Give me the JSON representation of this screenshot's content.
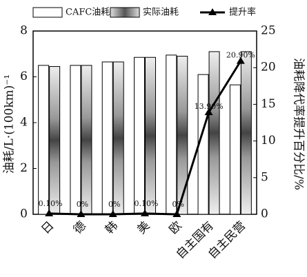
{
  "chart_data": {
    "type": "bar",
    "categories": [
      "日",
      "德",
      "韩",
      "美",
      "欧",
      "自主国有",
      "自主民营"
    ],
    "series": [
      {
        "name": "CAFC油耗",
        "color": "#ffffff",
        "values": [
          6.5,
          6.5,
          6.65,
          6.85,
          6.95,
          6.1,
          5.65
        ]
      },
      {
        "name": "实际油耗",
        "color": "#777777",
        "values": [
          6.45,
          6.5,
          6.65,
          6.85,
          6.9,
          7.1,
          7.1
        ]
      },
      {
        "name": "提升率",
        "color": "#000000",
        "type": "line",
        "axis": "y2",
        "values": [
          0.1,
          0,
          0,
          0.1,
          0,
          13.9,
          20.9
        ],
        "value_labels": [
          "0.10%",
          "0%",
          "0%",
          "0.10%",
          "0%",
          "13.90%",
          "20.90%"
        ]
      }
    ],
    "ylabel": "油耗/L·(100km)⁻¹",
    "y2label": "油耗降代率提升百分比/%",
    "ylim": [
      0,
      8
    ],
    "yticks": [
      0,
      2,
      4,
      6,
      8
    ],
    "y2lim": [
      0,
      25
    ],
    "y2ticks": [
      0,
      5,
      10,
      15,
      20,
      25
    ],
    "legend": "top"
  }
}
